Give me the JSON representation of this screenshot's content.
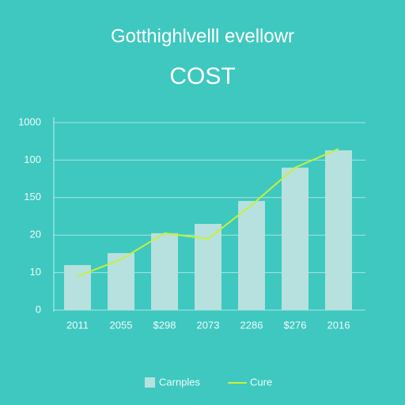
{
  "chart_data": {
    "type": "bar",
    "title": "Gotthighlvelll evellowr",
    "subtitle": "COST",
    "categories": [
      "2011",
      "2055",
      "$298",
      "2073",
      "2286",
      "$276",
      "2016"
    ],
    "series": [
      {
        "name": "Carnples",
        "type": "bar",
        "color": "#b7e1df",
        "values": [
          1.2,
          1.52,
          2.05,
          2.3,
          2.91,
          3.8,
          4.26
        ]
      },
      {
        "name": "Cure",
        "type": "line",
        "color": "#c8ef3c",
        "values": [
          0.9,
          1.35,
          2.05,
          1.9,
          2.8,
          3.8,
          4.3
        ]
      }
    ],
    "ylim": [
      0,
      5
    ],
    "yticks": [
      0,
      {
        "value": 1,
        "label": "10"
      },
      {
        "value": 2,
        "label": "20"
      },
      {
        "value": 3,
        "label": "150"
      },
      {
        "value": 4,
        "label": "100"
      },
      {
        "value": 5,
        "label": "1000"
      }
    ],
    "grid": true
  }
}
